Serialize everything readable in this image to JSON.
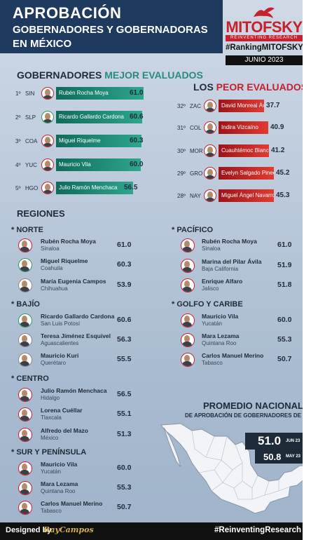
{
  "header": {
    "title_line1": "APROBACIÓN",
    "title_line2": "GOBERNADORES Y GOBERNADORAS",
    "title_line3": "EN MÉXICO"
  },
  "brand": {
    "logo": "MITOFSKY",
    "subtitle": "REINVENTING RESEARCH",
    "tag": "#RankingMITOFSKY",
    "date": "JUNIO 2023"
  },
  "best": {
    "heading_a": "GOBERNADORES",
    "heading_b": "MEJOR EVALUADOS",
    "rows": [
      {
        "rank": "1º",
        "state": "SIN",
        "name": "Rubén Rocha Moya",
        "score": "61.0"
      },
      {
        "rank": "2º",
        "state": "SLP",
        "name": "Ricardo Gallardo Cardona",
        "score": "60.6"
      },
      {
        "rank": "3º",
        "state": "COA",
        "name": "Miguel Riquelme",
        "score": "60.3"
      },
      {
        "rank": "4º",
        "state": "YUC",
        "name": "Mauricio Vila",
        "score": "60.0"
      },
      {
        "rank": "5º",
        "state": "HGO",
        "name": "Julio Ramón Menchaca",
        "score": "56.5"
      }
    ]
  },
  "worst": {
    "heading_a": "LOS",
    "heading_b": "PEOR EVALUADOS",
    "rows": [
      {
        "rank": "32º",
        "state": "ZAC",
        "name": "David Monreal Ávila",
        "score": "37.7"
      },
      {
        "rank": "31º",
        "state": "COL",
        "name": "Indira Vizcaíno",
        "score": "40.9"
      },
      {
        "rank": "30º",
        "state": "MOR",
        "name": "Cuauhtémoc Blanco",
        "score": "41.2"
      },
      {
        "rank": "29º",
        "state": "GRO",
        "name": "Evelyn Salgado Pineda",
        "score": "45.2"
      },
      {
        "rank": "28º",
        "state": "NAY",
        "name": "Miguel Ángel Navarro",
        "score": "45.3"
      }
    ]
  },
  "regions": {
    "heading": "REGIONES",
    "norte": {
      "label": "* NORTE",
      "rows": [
        {
          "name": "Rubén Rocha Moya",
          "state": "Sinaloa",
          "score": "61.0"
        },
        {
          "name": "Miguel Riquelme",
          "state": "Coahuila",
          "score": "60.3"
        },
        {
          "name": "María Eugenia Campos",
          "state": "Chihuahua",
          "score": "53.9"
        }
      ]
    },
    "bajio": {
      "label": "* BAJÍO",
      "rows": [
        {
          "name": "Ricardo Gallardo Cardona",
          "state": "San Luis Potosí",
          "score": "60.6"
        },
        {
          "name": "Teresa Jiménez Esquivel",
          "state": "Aguascalientes",
          "score": "56.3"
        },
        {
          "name": "Mauricio Kuri",
          "state": "Querétaro",
          "score": "55.5"
        }
      ]
    },
    "centro": {
      "label": "* CENTRO",
      "rows": [
        {
          "name": "Julio Ramón Menchaca",
          "state": "Hidalgo",
          "score": "56.5"
        },
        {
          "name": "Lorena Cuéllar",
          "state": "Tlaxcala",
          "score": "55.1"
        },
        {
          "name": "Alfredo del Mazo",
          "state": "México",
          "score": "51.3"
        }
      ]
    },
    "sur": {
      "label": "* SUR Y PENÍNSULA",
      "rows": [
        {
          "name": "Mauricio Vila",
          "state": "Yucatán",
          "score": "60.0"
        },
        {
          "name": "Mara Lezama",
          "state": "Quintana Roo",
          "score": "55.3"
        },
        {
          "name": "Carlos Manuel Merino",
          "state": "Tabasco",
          "score": "50.7"
        }
      ]
    },
    "pacifico": {
      "label": "* PACÍFICO",
      "rows": [
        {
          "name": "Rubén Rocha Moya",
          "state": "Sinaloa",
          "score": "61.0"
        },
        {
          "name": "Marina del Pilar Ávila",
          "state": "Baja California",
          "score": "51.9"
        },
        {
          "name": "Enrique Alfaro",
          "state": "Jalisco",
          "score": "51.8"
        }
      ]
    },
    "golfo": {
      "label": "* GOLFO Y CARIBE",
      "rows": [
        {
          "name": "Mauricio Vila",
          "state": "Yucatán",
          "score": "60.0"
        },
        {
          "name": "Mara Lezama",
          "state": "Quintana Roo",
          "score": "55.3"
        },
        {
          "name": "Carlos Manuel Merino",
          "state": "Tabasco",
          "score": "50.7"
        }
      ]
    }
  },
  "average": {
    "heading": "PROMEDIO NACIONAL",
    "subheading": "DE APROBACIÓN DE GOBERNADORES DE MÉXICO",
    "current_value": "51.0",
    "current_date": "JUN 23",
    "previous_value": "50.8",
    "previous_date": "MAY 23"
  },
  "footer": {
    "designed_by": "Designed by",
    "signature": "RayCampos",
    "hashtag": "#ReinventingResearch"
  },
  "colors": {
    "navy": "#1f3a5f",
    "brand_red": "#c8202d",
    "teal": "#2a8b7c",
    "up_green": "#2e9b5e"
  }
}
